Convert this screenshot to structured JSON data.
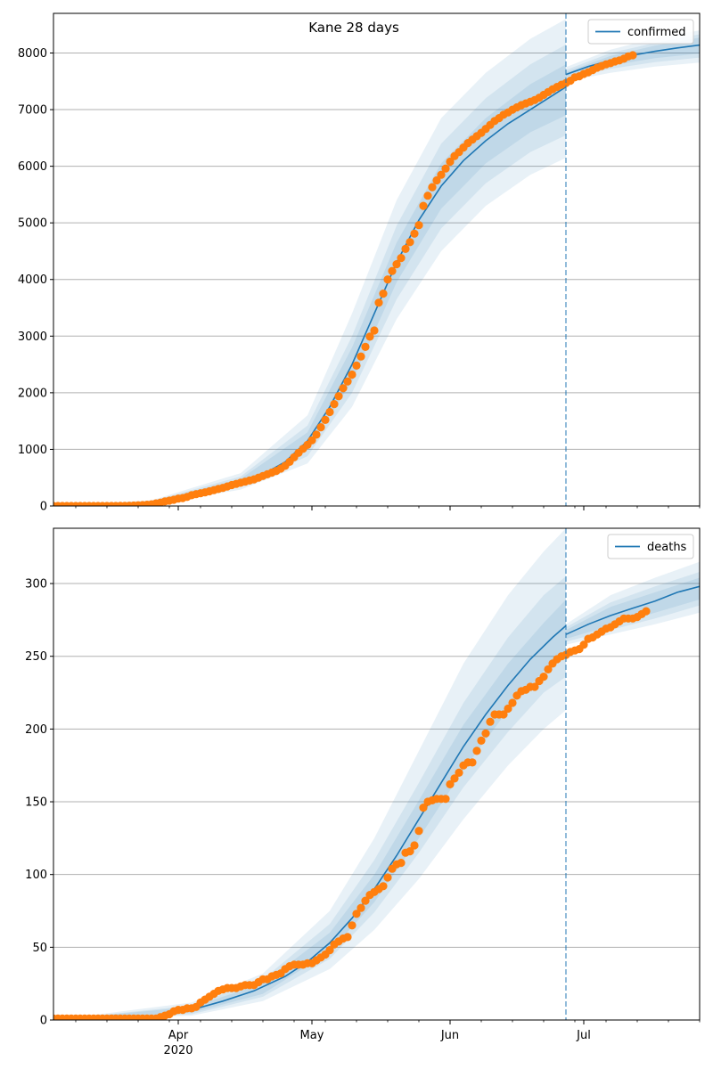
{
  "figure": {
    "title": "Kane 28 days"
  },
  "chart_data": [
    {
      "type": "line",
      "name": "confirmed",
      "x_start": "2020-03-04",
      "x_end": "2020-07-27",
      "forecast_start": "2020-06-27",
      "ylim": [
        0,
        8700
      ],
      "yticks": [
        0,
        1000,
        2000,
        3000,
        4000,
        5000,
        6000,
        7000,
        8000
      ],
      "grid": "y",
      "legend": {
        "position": "top-right",
        "entries": [
          "confirmed"
        ]
      },
      "x_tick_labels": [
        "Apr",
        "May",
        "Jun",
        "Jul"
      ],
      "x_tick_sublabel": "2020",
      "x_tick_dates": [
        "2020-04-01",
        "2020-05-01",
        "2020-06-01",
        "2020-07-01"
      ],
      "model_fit": {
        "color": "#1f77b4",
        "points": [
          [
            "2020-03-04",
            0
          ],
          [
            "2020-03-18",
            10
          ],
          [
            "2020-03-22",
            25
          ],
          [
            "2020-03-26",
            60
          ],
          [
            "2020-03-31",
            120
          ],
          [
            "2020-04-05",
            220
          ],
          [
            "2020-04-10",
            320
          ],
          [
            "2020-04-15",
            430
          ],
          [
            "2020-04-20",
            560
          ],
          [
            "2020-04-25",
            780
          ],
          [
            "2020-04-30",
            1150
          ],
          [
            "2020-05-05",
            1750
          ],
          [
            "2020-05-10",
            2500
          ],
          [
            "2020-05-15",
            3400
          ],
          [
            "2020-05-20",
            4300
          ],
          [
            "2020-05-25",
            5050
          ],
          [
            "2020-05-30",
            5650
          ],
          [
            "2020-06-04",
            6100
          ],
          [
            "2020-06-09",
            6450
          ],
          [
            "2020-06-14",
            6750
          ],
          [
            "2020-06-19",
            7000
          ],
          [
            "2020-06-24",
            7250
          ],
          [
            "2020-06-27",
            7400
          ]
        ]
      },
      "projection": {
        "color": "#1f77b4",
        "points": [
          [
            "2020-06-27",
            7620
          ],
          [
            "2020-07-02",
            7760
          ],
          [
            "2020-07-07",
            7870
          ],
          [
            "2020-07-12",
            7960
          ],
          [
            "2020-07-17",
            8030
          ],
          [
            "2020-07-22",
            8090
          ],
          [
            "2020-07-27",
            8140
          ]
        ]
      },
      "bands_fit": [
        {
          "date": "2020-03-04",
          "lo": [
            0,
            0,
            0
          ],
          "hi": [
            0,
            0,
            0
          ]
        },
        {
          "date": "2020-03-26",
          "lo": [
            20,
            35,
            45
          ],
          "hi": [
            100,
            85,
            75
          ]
        },
        {
          "date": "2020-04-15",
          "lo": [
            290,
            340,
            380
          ],
          "hi": [
            580,
            520,
            480
          ]
        },
        {
          "date": "2020-04-30",
          "lo": [
            750,
            880,
            1000
          ],
          "hi": [
            1600,
            1420,
            1300
          ]
        },
        {
          "date": "2020-05-10",
          "lo": [
            1750,
            2000,
            2200
          ],
          "hi": [
            3400,
            3000,
            2800
          ]
        },
        {
          "date": "2020-05-20",
          "lo": [
            3300,
            3650,
            3950
          ],
          "hi": [
            5400,
            4950,
            4650
          ]
        },
        {
          "date": "2020-05-30",
          "lo": [
            4500,
            4900,
            5250
          ],
          "hi": [
            6850,
            6400,
            6050
          ]
        },
        {
          "date": "2020-06-09",
          "lo": [
            5300,
            5700,
            6050
          ],
          "hi": [
            7650,
            7200,
            6850
          ]
        },
        {
          "date": "2020-06-19",
          "lo": [
            5850,
            6250,
            6600
          ],
          "hi": [
            8250,
            7800,
            7450
          ]
        },
        {
          "date": "2020-06-27",
          "lo": [
            6150,
            6550,
            6900
          ],
          "hi": [
            8600,
            8150,
            7800
          ]
        }
      ],
      "bands_projection": [
        {
          "date": "2020-06-27",
          "lo": [
            7500,
            7550,
            7580
          ],
          "hi": [
            7750,
            7700,
            7660
          ]
        },
        {
          "date": "2020-07-07",
          "lo": [
            7650,
            7720,
            7780
          ],
          "hi": [
            8060,
            8000,
            7950
          ]
        },
        {
          "date": "2020-07-17",
          "lo": [
            7760,
            7840,
            7910
          ],
          "hi": [
            8260,
            8180,
            8130
          ]
        },
        {
          "date": "2020-07-27",
          "lo": [
            7830,
            7920,
            7990
          ],
          "hi": [
            8400,
            8330,
            8270
          ]
        }
      ],
      "observed": {
        "color": "#ff7f0e",
        "start": "2020-03-04",
        "values": [
          0,
          0,
          0,
          0,
          0,
          0,
          0,
          0,
          0,
          0,
          0,
          0,
          0,
          0,
          0,
          1,
          2,
          4,
          8,
          12,
          16,
          22,
          30,
          45,
          60,
          80,
          95,
          110,
          130,
          140,
          160,
          190,
          210,
          225,
          240,
          260,
          280,
          300,
          320,
          345,
          370,
          390,
          410,
          430,
          450,
          470,
          500,
          530,
          560,
          590,
          620,
          660,
          710,
          780,
          860,
          940,
          1010,
          1080,
          1160,
          1260,
          1390,
          1520,
          1660,
          1800,
          1940,
          2080,
          2200,
          2320,
          2480,
          2640,
          2810,
          2990,
          3100,
          3590,
          3750,
          4000,
          4150,
          4270,
          4380,
          4540,
          4660,
          4810,
          4960,
          5300,
          5480,
          5630,
          5750,
          5850,
          5960,
          6080,
          6180,
          6250,
          6330,
          6410,
          6470,
          6530,
          6590,
          6660,
          6730,
          6800,
          6850,
          6910,
          6950,
          7000,
          7040,
          7080,
          7110,
          7140,
          7170,
          7210,
          7260,
          7310,
          7360,
          7400,
          7440,
          7470,
          7510,
          7570,
          7590,
          7630,
          7660,
          7700,
          7740,
          7770,
          7800,
          7820,
          7850,
          7870,
          7900,
          7940,
          7960
        ]
      }
    },
    {
      "type": "line",
      "name": "deaths",
      "x_start": "2020-03-04",
      "x_end": "2020-07-27",
      "forecast_start": "2020-06-27",
      "ylim": [
        0,
        338
      ],
      "yticks": [
        0,
        50,
        100,
        150,
        200,
        250,
        300
      ],
      "grid": "y",
      "legend": {
        "position": "top-right",
        "entries": [
          "deaths"
        ]
      },
      "x_tick_labels": [
        "Apr",
        "May",
        "Jun",
        "Jul"
      ],
      "x_tick_sublabel": "2020",
      "x_tick_dates": [
        "2020-04-01",
        "2020-05-01",
        "2020-06-01",
        "2020-07-01"
      ],
      "model_fit": {
        "color": "#1f77b4",
        "points": [
          [
            "2020-03-04",
            0
          ],
          [
            "2020-03-20",
            0.5
          ],
          [
            "2020-03-28",
            2
          ],
          [
            "2020-04-04",
            7
          ],
          [
            "2020-04-11",
            13
          ],
          [
            "2020-04-18",
            20
          ],
          [
            "2020-04-25",
            30
          ],
          [
            "2020-04-30",
            40
          ],
          [
            "2020-05-05",
            53
          ],
          [
            "2020-05-10",
            70
          ],
          [
            "2020-05-15",
            90
          ],
          [
            "2020-05-20",
            113
          ],
          [
            "2020-05-25",
            138
          ],
          [
            "2020-05-30",
            163
          ],
          [
            "2020-06-04",
            188
          ],
          [
            "2020-06-09",
            210
          ],
          [
            "2020-06-14",
            230
          ],
          [
            "2020-06-19",
            248
          ],
          [
            "2020-06-24",
            263
          ],
          [
            "2020-06-27",
            271
          ]
        ]
      },
      "projection": {
        "color": "#1f77b4",
        "points": [
          [
            "2020-06-27",
            265
          ],
          [
            "2020-07-02",
            272
          ],
          [
            "2020-07-07",
            278
          ],
          [
            "2020-07-12",
            283
          ],
          [
            "2020-07-17",
            288
          ],
          [
            "2020-07-22",
            294
          ],
          [
            "2020-07-27",
            298
          ]
        ]
      },
      "bands_fit": [
        {
          "date": "2020-03-04",
          "lo": [
            0,
            0,
            0
          ],
          "hi": [
            0,
            0,
            0
          ]
        },
        {
          "date": "2020-04-04",
          "lo": [
            3,
            4,
            5
          ],
          "hi": [
            12,
            10,
            9
          ]
        },
        {
          "date": "2020-04-20",
          "lo": [
            13,
            16,
            18
          ],
          "hi": [
            32,
            28,
            25
          ]
        },
        {
          "date": "2020-05-05",
          "lo": [
            35,
            42,
            47
          ],
          "hi": [
            75,
            66,
            60
          ]
        },
        {
          "date": "2020-05-15",
          "lo": [
            62,
            74,
            81
          ],
          "hi": [
            125,
            110,
            100
          ]
        },
        {
          "date": "2020-05-25",
          "lo": [
            97,
            115,
            125
          ],
          "hi": [
            185,
            163,
            151
          ]
        },
        {
          "date": "2020-06-04",
          "lo": [
            138,
            160,
            172
          ],
          "hi": [
            245,
            218,
            203
          ]
        },
        {
          "date": "2020-06-14",
          "lo": [
            175,
            198,
            213
          ],
          "hi": [
            292,
            263,
            245
          ]
        },
        {
          "date": "2020-06-22",
          "lo": [
            200,
            225,
            240
          ],
          "hi": [
            322,
            292,
            273
          ]
        },
        {
          "date": "2020-06-27",
          "lo": [
            213,
            236,
            252
          ],
          "hi": [
            338,
            305,
            289
          ]
        }
      ],
      "bands_projection": [
        {
          "date": "2020-06-27",
          "lo": [
            258,
            260,
            262
          ],
          "hi": [
            272,
            270,
            268
          ]
        },
        {
          "date": "2020-07-07",
          "lo": [
            265,
            268,
            271
          ],
          "hi": [
            292,
            287,
            284
          ]
        },
        {
          "date": "2020-07-17",
          "lo": [
            272,
            276,
            280
          ],
          "hi": [
            304,
            298,
            294
          ]
        },
        {
          "date": "2020-07-27",
          "lo": [
            280,
            285,
            289
          ],
          "hi": [
            315,
            308,
            304
          ]
        }
      ],
      "observed": {
        "color": "#ff7f0e",
        "start": "2020-03-04",
        "values": [
          1,
          1,
          1,
          1,
          1,
          1,
          1,
          1,
          1,
          1,
          1,
          1,
          1,
          1,
          1,
          1,
          1,
          1,
          1,
          1,
          1,
          1,
          1,
          1,
          2,
          3,
          4,
          6,
          7,
          7,
          8,
          8,
          9,
          12,
          14,
          16,
          18,
          20,
          21,
          22,
          22,
          22,
          23,
          24,
          24,
          24,
          26,
          28,
          28,
          30,
          31,
          32,
          35,
          37,
          38,
          38,
          38,
          39,
          39,
          41,
          43,
          45,
          48,
          52,
          54,
          56,
          57,
          65,
          73,
          77,
          82,
          86,
          88,
          90,
          92,
          98,
          104,
          107,
          108,
          115,
          116,
          120,
          130,
          146,
          150,
          151,
          152,
          152,
          152,
          162,
          166,
          170,
          175,
          177,
          177,
          185,
          192,
          197,
          205,
          210,
          210,
          210,
          214,
          218,
          223,
          226,
          227,
          229,
          229,
          233,
          236,
          241,
          245,
          248,
          250,
          251,
          253,
          254,
          255,
          258,
          262,
          263,
          265,
          267,
          269,
          270,
          272,
          274,
          276,
          276,
          276,
          277,
          279,
          281
        ]
      }
    }
  ]
}
